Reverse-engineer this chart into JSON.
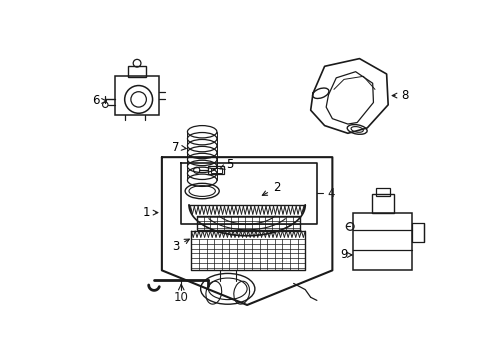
{
  "bg_color": "#ffffff",
  "line_color": "#1a1a1a",
  "lw": 1.0,
  "fig_w": 4.89,
  "fig_h": 3.6,
  "dpi": 100
}
